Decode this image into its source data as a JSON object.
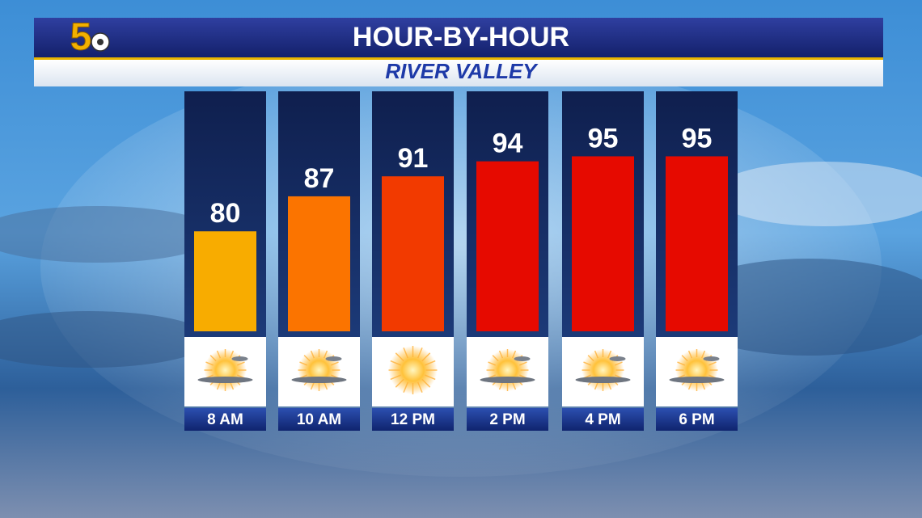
{
  "logo": "5",
  "chart_data": {
    "type": "bar",
    "title": "HOUR-BY-HOUR",
    "subtitle": "RIVER VALLEY",
    "categories": [
      "8 AM",
      "10 AM",
      "12 PM",
      "2 PM",
      "4 PM",
      "6 PM"
    ],
    "values": [
      80,
      87,
      91,
      94,
      95,
      95
    ],
    "colors": [
      "#f8ac00",
      "#fb7400",
      "#f23a00",
      "#e60a00",
      "#e60a00",
      "#e60a00"
    ],
    "ylim": [
      60,
      108
    ]
  }
}
